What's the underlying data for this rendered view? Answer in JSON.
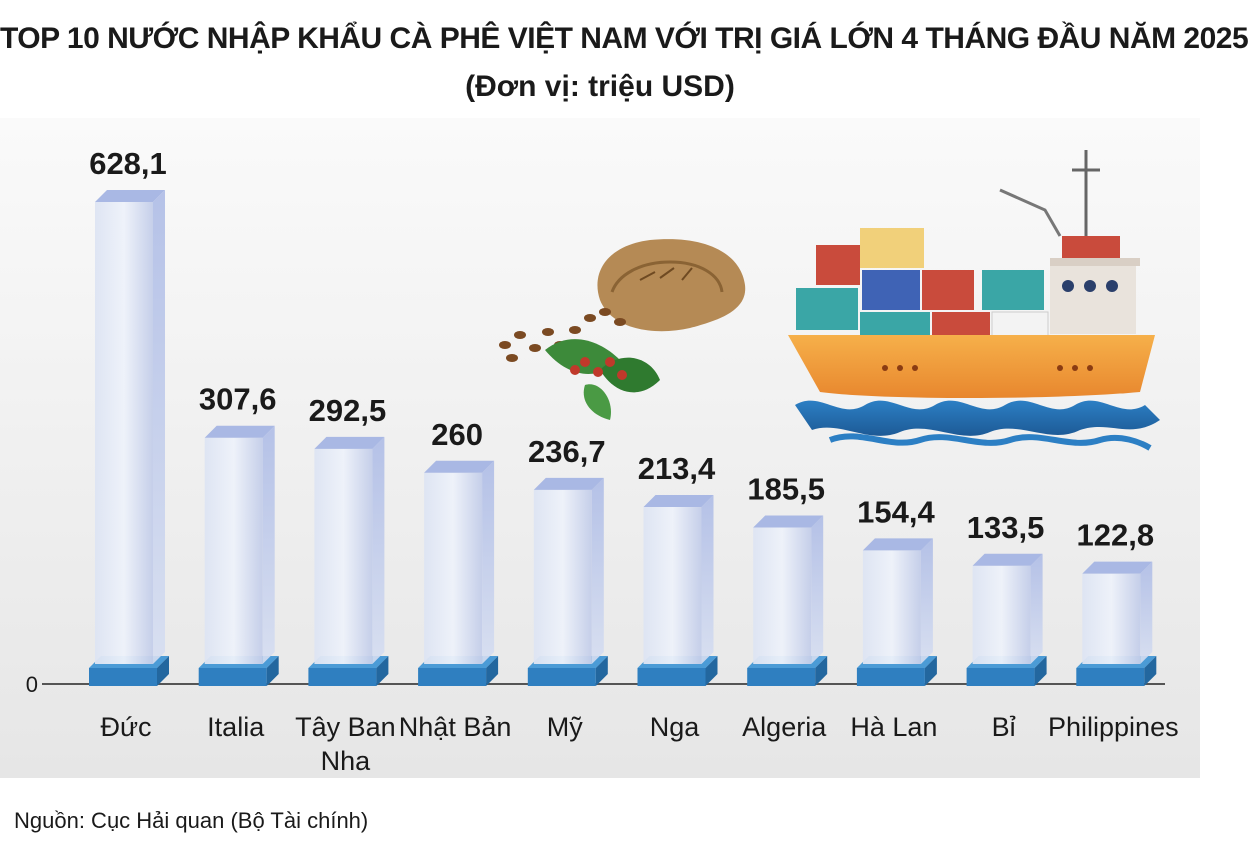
{
  "title": "TOP 10 NƯỚC NHẬP KHẨU CÀ PHÊ VIỆT NAM VỚI TRỊ GIÁ LỚN 4 THÁNG ĐẦU NĂM 2025",
  "subtitle": "(Đơn vị: triệu USD)",
  "source": "Nguồn: Cục Hải quan (Bộ Tài chính)",
  "zero_label": "0",
  "colors": {
    "bar_face": "#cfd8ee",
    "bar_top": "#a9b8e4",
    "base_blue": "#3a86c8",
    "panel_bg": "#eaeaea"
  },
  "chart_data": {
    "type": "bar",
    "title": "TOP 10 NƯỚC NHẬP KHẨU CÀ PHÊ VIỆT NAM VỚI TRỊ GIÁ LỚN 4 THÁNG ĐẦU NĂM 2025",
    "subtitle": "(Đơn vị: triệu USD)",
    "categories": [
      "Đức",
      "Italia",
      "Tây Ban\nNha",
      "Nhật Bản",
      "Mỹ",
      "Nga",
      "Algeria",
      "Hà Lan",
      "Bỉ",
      "Philippines"
    ],
    "values": [
      628.1,
      307.6,
      292.5,
      260,
      236.7,
      213.4,
      185.5,
      154.4,
      133.5,
      122.8
    ],
    "value_labels": [
      "628,1",
      "307,6",
      "292,5",
      "260",
      "236,7",
      "213,4",
      "185,5",
      "154,4",
      "133,5",
      "122,8"
    ],
    "xlabel": "",
    "ylabel": "",
    "ylim": [
      0,
      628.1
    ],
    "grid": false,
    "legend": "none"
  }
}
